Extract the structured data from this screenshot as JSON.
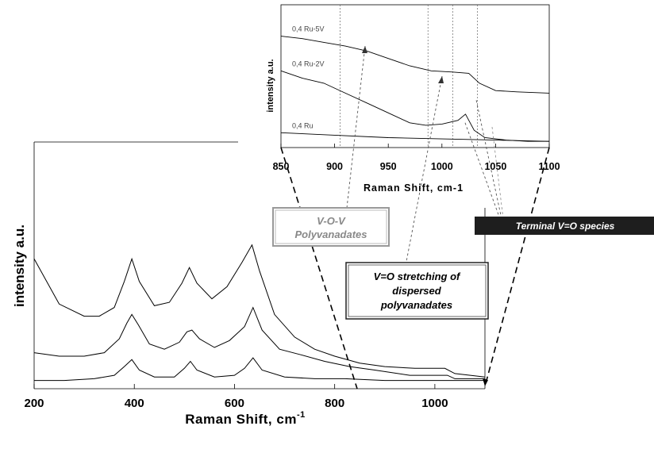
{
  "chart_data": [
    {
      "type": "line",
      "title": "",
      "xlabel": "Raman Shift, cm",
      "xlabel_superscript": "-1",
      "ylabel": "intensity a.u.",
      "xlim": [
        200,
        1100
      ],
      "xticks": [
        200,
        400,
        600,
        800,
        1000
      ],
      "yticks": [],
      "grid": false,
      "series": [
        {
          "x": [
            200,
            250,
            300,
            330,
            360,
            380,
            395,
            410,
            440,
            470,
            495,
            510,
            525,
            555,
            585,
            615,
            635,
            650,
            680,
            720,
            760,
            800,
            850,
            900,
            960,
            1000,
            1020,
            1040,
            1100
          ],
          "y": [
            0.72,
            0.46,
            0.39,
            0.39,
            0.44,
            0.59,
            0.72,
            0.59,
            0.45,
            0.47,
            0.58,
            0.67,
            0.58,
            0.49,
            0.56,
            0.7,
            0.8,
            0.65,
            0.4,
            0.27,
            0.2,
            0.16,
            0.12,
            0.1,
            0.09,
            0.09,
            0.09,
            0.06,
            0.04
          ]
        },
        {
          "x": [
            200,
            250,
            300,
            340,
            370,
            385,
            395,
            408,
            430,
            460,
            490,
            505,
            515,
            530,
            560,
            590,
            620,
            637,
            655,
            690,
            730,
            780,
            830,
            880,
            950,
            1000,
            1025,
            1040,
            1100
          ],
          "y": [
            0.18,
            0.16,
            0.16,
            0.18,
            0.26,
            0.35,
            0.4,
            0.34,
            0.23,
            0.2,
            0.24,
            0.3,
            0.31,
            0.26,
            0.21,
            0.25,
            0.33,
            0.44,
            0.31,
            0.2,
            0.17,
            0.13,
            0.1,
            0.08,
            0.05,
            0.05,
            0.05,
            0.03,
            0.03
          ]
        },
        {
          "x": [
            200,
            260,
            320,
            360,
            380,
            395,
            410,
            440,
            480,
            500,
            512,
            525,
            560,
            600,
            620,
            637,
            655,
            700,
            760,
            820,
            900,
            1000,
            1100
          ],
          "y": [
            0.02,
            0.02,
            0.03,
            0.05,
            0.1,
            0.14,
            0.08,
            0.04,
            0.04,
            0.09,
            0.13,
            0.08,
            0.04,
            0.05,
            0.09,
            0.15,
            0.08,
            0.04,
            0.03,
            0.03,
            0.02,
            0.02,
            0.02
          ]
        }
      ]
    },
    {
      "type": "line",
      "title": "",
      "xlabel": "Raman Shift, cm-1",
      "ylabel": "intensity a.u.",
      "xlim": [
        850,
        1100
      ],
      "xticks": [
        850,
        900,
        950,
        1000,
        1050,
        1100
      ],
      "yticks": [],
      "grid": false,
      "vlines": [
        905,
        987,
        1010,
        1033
      ],
      "series": [
        {
          "name": "0,4 Ru-5V",
          "x": [
            850,
            870,
            890,
            910,
            930,
            950,
            970,
            990,
            1010,
            1025,
            1035,
            1050,
            1070,
            1100
          ],
          "y": [
            0.9,
            0.88,
            0.85,
            0.82,
            0.78,
            0.72,
            0.66,
            0.62,
            0.61,
            0.6,
            0.52,
            0.46,
            0.45,
            0.44
          ]
        },
        {
          "name": "0,4 Ru-2V",
          "x": [
            850,
            870,
            890,
            910,
            930,
            950,
            970,
            985,
            1000,
            1015,
            1022,
            1030,
            1040,
            1060,
            1080,
            1100
          ],
          "y": [
            0.62,
            0.56,
            0.52,
            0.44,
            0.36,
            0.28,
            0.2,
            0.18,
            0.19,
            0.22,
            0.27,
            0.14,
            0.08,
            0.06,
            0.05,
            0.05
          ]
        },
        {
          "name": "0,4 Ru",
          "x": [
            850,
            900,
            950,
            1000,
            1050,
            1100
          ],
          "y": [
            0.12,
            0.1,
            0.08,
            0.07,
            0.06,
            0.05
          ]
        }
      ]
    }
  ],
  "annotations": {
    "vov_line1": "V-O-V",
    "vov_line2": "Polyvanadates",
    "stretch_line1": "V=O stretching of",
    "stretch_line2": "dispersed",
    "stretch_line3": "polyvanadates",
    "terminal": "Terminal V=O species"
  },
  "colors": {
    "line": "#000000",
    "terminal_box": "#1e1e1e",
    "terminal_text": "#ffffff",
    "annotation_text": "#888888"
  }
}
